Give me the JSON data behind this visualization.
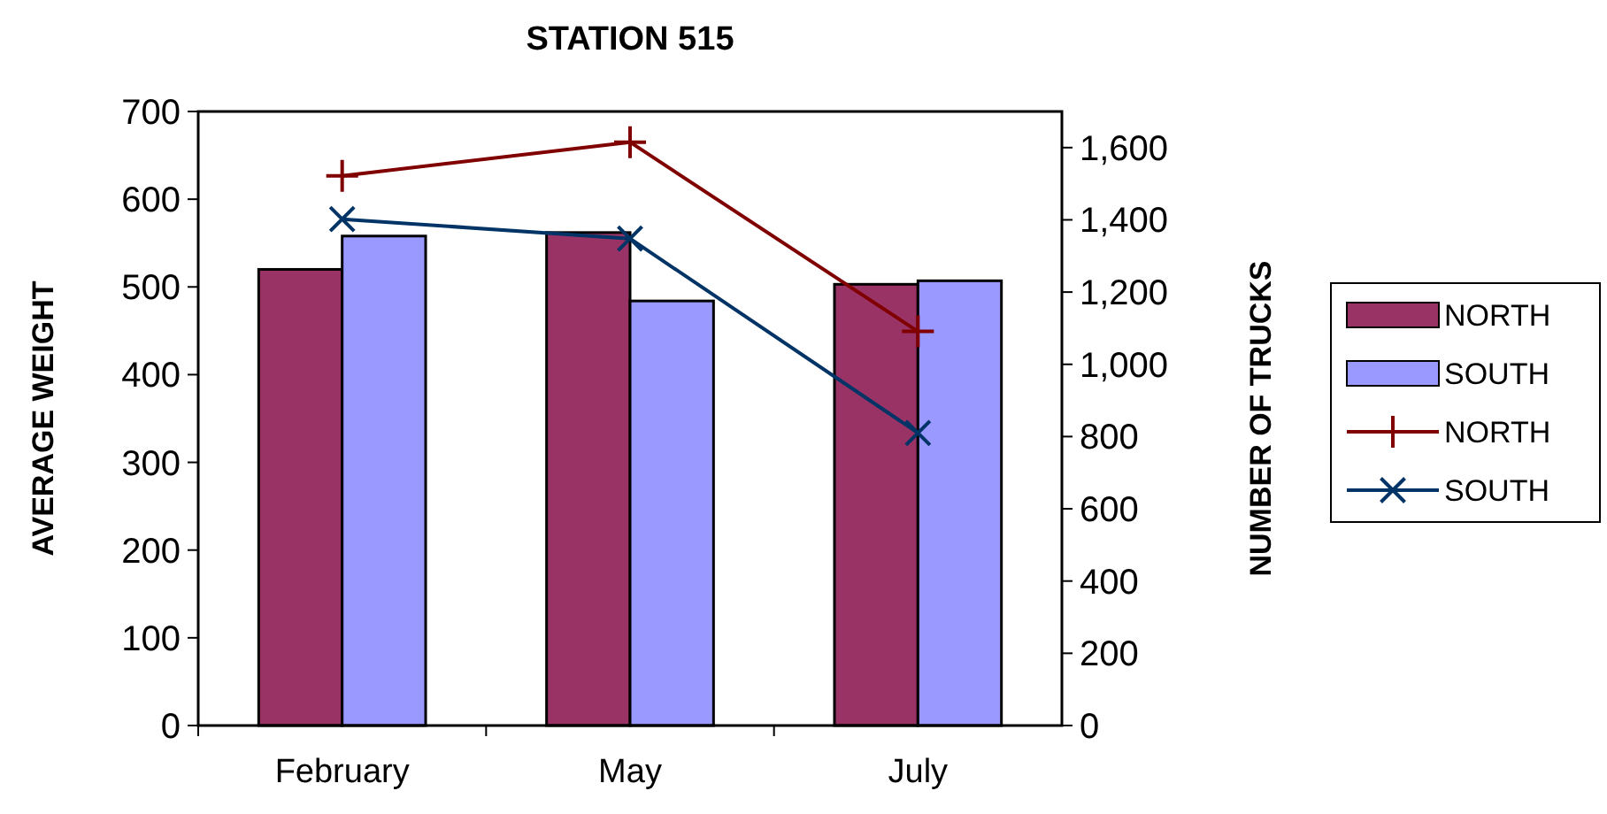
{
  "chart_data": {
    "type": "bar",
    "title": "STATION 515",
    "ylabel": "AVERAGE WEIGHT",
    "y2label": "NUMBER OF TRUCKS",
    "categories": [
      "February",
      "May",
      "July"
    ],
    "series": [
      {
        "name": "NORTH",
        "color": "#993366",
        "values": [
          520,
          562,
          503
        ]
      },
      {
        "name": "SOUTH",
        "color": "#9999ff",
        "values": [
          558,
          484,
          507
        ]
      },
      {
        "name": "NORTH",
        "type": "line",
        "axis": "y2",
        "color": "#800000",
        "marker": "plus",
        "values": [
          1522,
          1615,
          1091
        ]
      },
      {
        "name": "SOUTH",
        "type": "line",
        "axis": "y2",
        "color": "#003366",
        "marker": "cross",
        "values": [
          1402,
          1348,
          810
        ]
      }
    ],
    "ylim": [
      0,
      700
    ],
    "yticks": [
      0,
      100,
      200,
      300,
      400,
      500,
      600,
      700
    ],
    "y2lim": [
      0,
      1700
    ],
    "y2ticks": [
      0,
      200,
      400,
      600,
      800,
      {
        "value": 1000,
        "label": "1,000"
      },
      {
        "value": 1200,
        "label": "1,200"
      },
      {
        "value": 1400,
        "label": "1,400"
      },
      {
        "value": 1600,
        "label": "1,600"
      }
    ],
    "grid": false,
    "legend": "right"
  }
}
